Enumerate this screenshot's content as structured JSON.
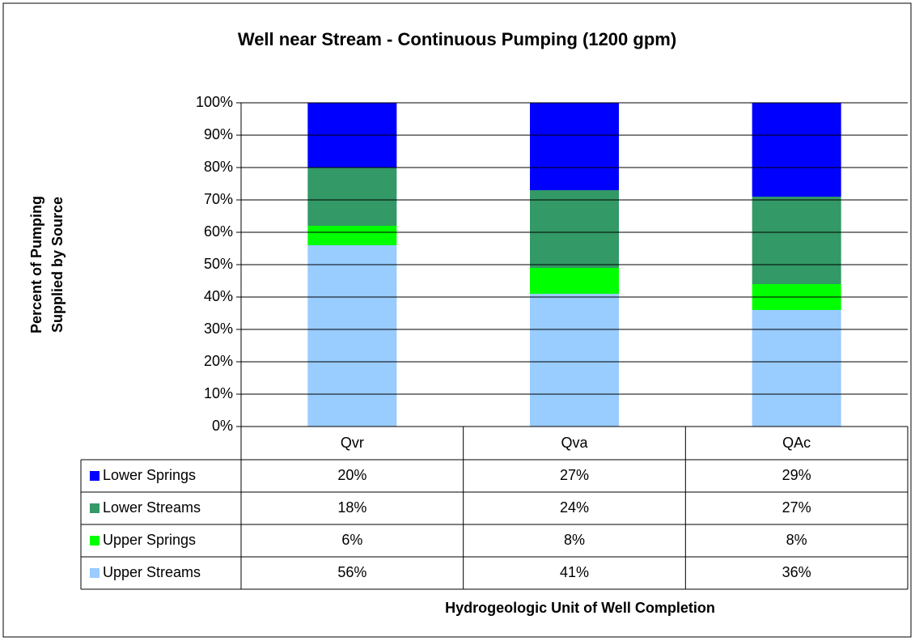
{
  "chart_data": {
    "type": "stacked_bar",
    "title": "Well near Stream - Continuous Pumping (1200 gpm)",
    "y_label": [
      "Percent of Pumping",
      "Supplied by Source"
    ],
    "x_label": "Hydrogeologic Unit of Well Completion",
    "categories": [
      "Qvr",
      "Qva",
      "QAc"
    ],
    "series": [
      {
        "name": "Upper Streams",
        "color": "#99ccff",
        "values": [
          56,
          41,
          36
        ],
        "value_labels": [
          "56%",
          "41%",
          "36%"
        ]
      },
      {
        "name": "Upper Springs",
        "color": "#00ff00",
        "values": [
          6,
          8,
          8
        ],
        "value_labels": [
          "6%",
          "8%",
          "8%"
        ]
      },
      {
        "name": "Lower Streams",
        "color": "#339966",
        "values": [
          18,
          24,
          27
        ],
        "value_labels": [
          "18%",
          "24%",
          "27%"
        ]
      },
      {
        "name": "Lower Springs",
        "color": "#0000ff",
        "values": [
          20,
          27,
          29
        ],
        "value_labels": [
          "20%",
          "27%",
          "29%"
        ]
      }
    ],
    "ylim": [
      0,
      100
    ],
    "yticks": [
      {
        "value": 0,
        "label": "0%"
      },
      {
        "value": 10,
        "label": "10%"
      },
      {
        "value": 20,
        "label": "20%"
      },
      {
        "value": 30,
        "label": "30%"
      },
      {
        "value": 40,
        "label": "40%"
      },
      {
        "value": 50,
        "label": "50%"
      },
      {
        "value": 60,
        "label": "60%"
      },
      {
        "value": 70,
        "label": "70%"
      },
      {
        "value": 80,
        "label": "80%"
      },
      {
        "value": 90,
        "label": "90%"
      },
      {
        "value": 100,
        "label": "100%"
      }
    ],
    "grid": true
  }
}
